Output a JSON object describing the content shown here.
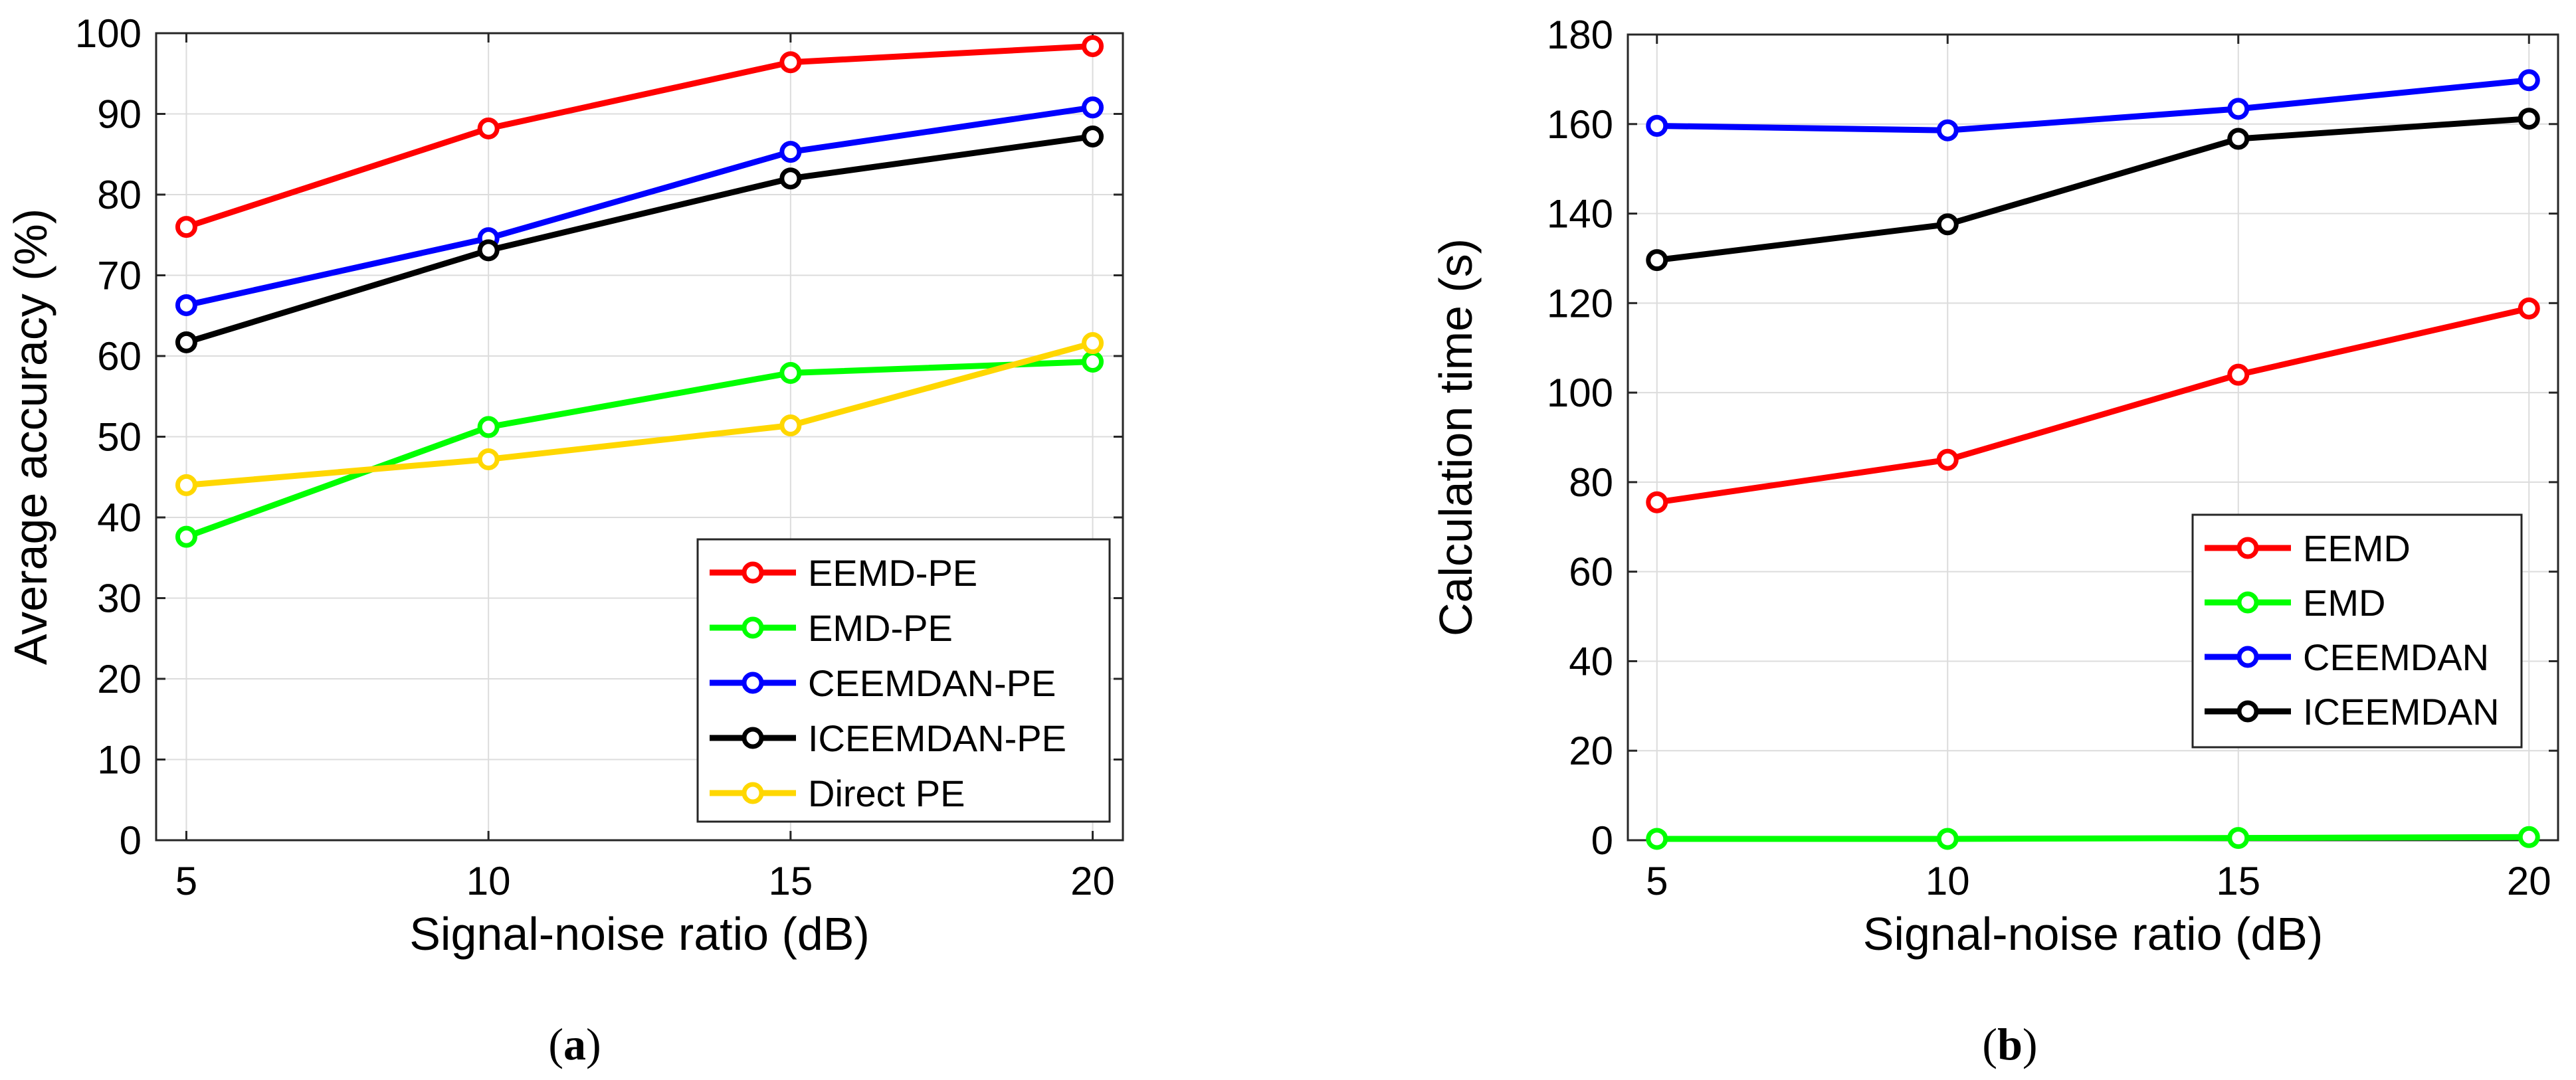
{
  "chart_data": [
    {
      "type": "line",
      "title": "",
      "xlabel": "Signal-noise ratio (dB)",
      "ylabel": "Average accuracy (%)",
      "caption": "a",
      "x": [
        5,
        10,
        15,
        20
      ],
      "xticks": [
        5,
        10,
        15,
        20
      ],
      "xlim": [
        4.5,
        20.5
      ],
      "ylim": [
        0,
        100
      ],
      "yticks": [
        0,
        10,
        20,
        30,
        40,
        50,
        60,
        70,
        80,
        90,
        100
      ],
      "grid": true,
      "legend_position": "bottom-right",
      "series": [
        {
          "name": "EEMD-PE",
          "color": "#ff0000",
          "values": [
            76.0,
            88.2,
            96.4,
            98.4
          ]
        },
        {
          "name": "EMD-PE",
          "color": "#00ff00",
          "values": [
            37.6,
            51.2,
            57.9,
            59.3
          ]
        },
        {
          "name": "CEEMDAN-PE",
          "color": "#0000ff",
          "values": [
            66.3,
            74.6,
            85.3,
            90.8
          ]
        },
        {
          "name": "ICEEMDAN-PE",
          "color": "#000000",
          "values": [
            61.7,
            73.1,
            82.0,
            87.2
          ]
        },
        {
          "name": "Direct PE",
          "color": "#ffd700",
          "values": [
            44.0,
            47.2,
            51.4,
            61.6
          ]
        }
      ]
    },
    {
      "type": "line",
      "title": "",
      "xlabel": "Signal-noise ratio (dB)",
      "ylabel": "Calculation time (s)",
      "caption": "b",
      "x": [
        5,
        10,
        15,
        20
      ],
      "xticks": [
        5,
        10,
        15,
        20
      ],
      "xlim": [
        4.5,
        20.5
      ],
      "ylim": [
        0,
        180
      ],
      "yticks": [
        0,
        20,
        40,
        60,
        80,
        100,
        120,
        140,
        160,
        180
      ],
      "grid": true,
      "legend_position": "right",
      "series": [
        {
          "name": "EEMD",
          "color": "#ff0000",
          "values": [
            75.5,
            85.0,
            104.0,
            118.8
          ]
        },
        {
          "name": "EMD",
          "color": "#00ff00",
          "values": [
            0.3,
            0.3,
            0.5,
            0.7
          ]
        },
        {
          "name": "CEEMDAN",
          "color": "#0000ff",
          "values": [
            159.6,
            158.6,
            163.4,
            169.8
          ]
        },
        {
          "name": "ICEEMDAN",
          "color": "#000000",
          "values": [
            129.6,
            137.6,
            156.7,
            161.2
          ]
        }
      ]
    }
  ]
}
